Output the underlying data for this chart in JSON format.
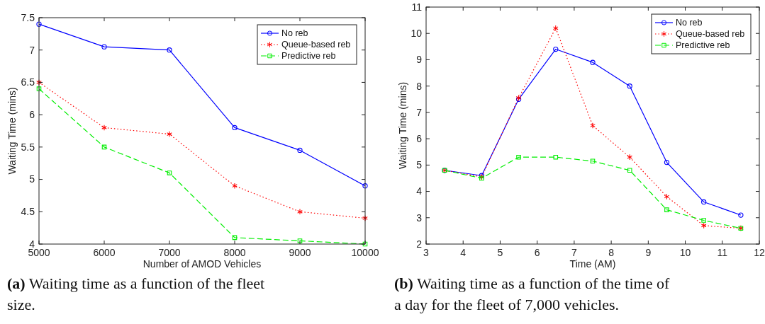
{
  "chart_data": [
    {
      "type": "line",
      "xlabel": "Number of AMOD Vehicles",
      "ylabel": "Waiting Time (mins)",
      "x": [
        5000,
        6000,
        7000,
        8000,
        9000,
        10000
      ],
      "xlim": [
        5000,
        10000
      ],
      "xticks": [
        5000,
        6000,
        7000,
        8000,
        9000,
        10000
      ],
      "ylim": [
        4,
        7.5
      ],
      "yticks": [
        4,
        4.5,
        5,
        5.5,
        6,
        6.5,
        7,
        7.5
      ],
      "grid": false,
      "legend": "top right",
      "annotations": [
        "(a) Waiting time as a function of the fleet size."
      ],
      "series": [
        {
          "name": "No reb",
          "color": "#0000ff",
          "marker": "circle",
          "line_style": "solid",
          "values": [
            7.4,
            7.05,
            7.0,
            5.8,
            5.45,
            4.9
          ]
        },
        {
          "name": "Queue-based reb",
          "color": "#ff0000",
          "marker": "cross",
          "line_style": "dotted",
          "values": [
            6.5,
            5.8,
            5.7,
            4.9,
            4.5,
            4.4
          ]
        },
        {
          "name": "Predictive reb",
          "color": "#00ee00",
          "marker": "square",
          "line_style": "dashed",
          "values": [
            6.4,
            5.5,
            5.1,
            4.1,
            4.05,
            4.0
          ]
        }
      ]
    },
    {
      "type": "line",
      "xlabel": "Time (AM)",
      "ylabel": "Waiting Time (mins)",
      "x": [
        3.5,
        4.5,
        5.5,
        6.5,
        7.5,
        8.5,
        9.5,
        10.5,
        11.5
      ],
      "xlim": [
        3,
        12
      ],
      "xticks": [
        3,
        4,
        5,
        6,
        7,
        8,
        9,
        10,
        11,
        12
      ],
      "ylim": [
        2,
        11
      ],
      "yticks": [
        2,
        3,
        4,
        5,
        6,
        7,
        8,
        9,
        10,
        11
      ],
      "grid": false,
      "legend": "top right",
      "annotations": [
        "(b) Waiting time as a function of the time of a day for the fleet of 7,000 vehicles."
      ],
      "series": [
        {
          "name": "No reb",
          "color": "#0000ff",
          "marker": "circle",
          "line_style": "solid",
          "values": [
            4.8,
            4.6,
            7.5,
            9.4,
            8.9,
            8.0,
            5.1,
            3.6,
            3.1
          ]
        },
        {
          "name": "Queue-based reb",
          "color": "#ff0000",
          "marker": "cross",
          "line_style": "dotted",
          "values": [
            4.8,
            4.55,
            7.55,
            10.2,
            6.5,
            5.3,
            3.8,
            2.7,
            2.6
          ]
        },
        {
          "name": "Predictive reb",
          "color": "#00ee00",
          "marker": "square",
          "line_style": "dashed",
          "values": [
            4.8,
            4.5,
            5.3,
            5.3,
            5.15,
            4.8,
            3.3,
            2.9,
            2.6
          ]
        }
      ]
    }
  ]
}
